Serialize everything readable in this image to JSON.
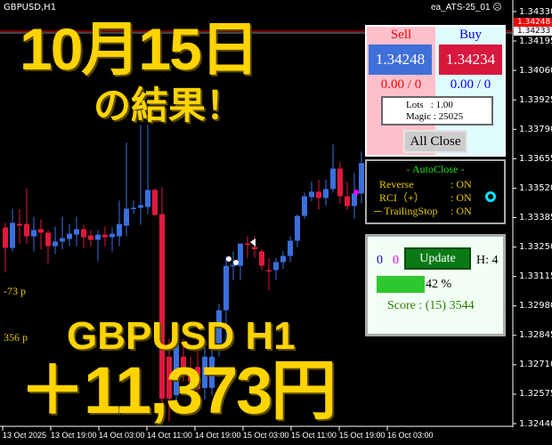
{
  "chart": {
    "symbol": "GBPUSD,H1",
    "ea_name": "ea_ATS-25_01",
    "ea_status_icon": "sad-face-icon",
    "bid_label": "1.34233",
    "ask_label": "1.34248",
    "price_ticks": [
      "1.34330",
      "1.34195",
      "1.34060",
      "1.33925",
      "1.33790",
      "1.33655",
      "1.33520",
      "1.33385",
      "1.33250",
      "1.33115",
      "1.32980",
      "1.32845",
      "1.32710",
      "1.32575",
      "1.32440"
    ],
    "time_ticks": [
      "13 Oct 2025",
      "13 Oct 19:00",
      "14 Oct 03:00",
      "14 Oct 11:00",
      "14 Oct 19:00",
      "15 Oct 03:00",
      "15 Oct 11:00",
      "15 Oct 19:00",
      "16 Oct 03:00"
    ],
    "colors": {
      "bull": "#3a6fe0",
      "bear": "#e0193c"
    },
    "candles_ohlc": [
      [
        1.3334,
        1.33361,
        1.33136,
        1.33246
      ],
      [
        1.33246,
        1.33426,
        1.3323,
        1.33361
      ],
      [
        1.33356,
        1.33422,
        1.33266,
        1.33348
      ],
      [
        1.33356,
        1.3352,
        1.33266,
        1.33299
      ],
      [
        1.33299,
        1.33389,
        1.3323,
        1.33328
      ],
      [
        1.33332,
        1.33377,
        1.33238,
        1.33316
      ],
      [
        1.33316,
        1.33328,
        1.33176,
        1.33254
      ],
      [
        1.33254,
        1.33344,
        1.33217,
        1.33275
      ],
      [
        1.33275,
        1.33389,
        1.33238,
        1.33291
      ],
      [
        1.33287,
        1.33356,
        1.33254,
        1.33311
      ],
      [
        1.33307,
        1.33389,
        1.33254,
        1.33332
      ],
      [
        1.33332,
        1.33352,
        1.33246,
        1.33295
      ],
      [
        1.33303,
        1.33328,
        1.33254,
        1.33283
      ],
      [
        1.33283,
        1.33328,
        1.33185,
        1.33307
      ],
      [
        1.33307,
        1.33344,
        1.33254,
        1.33295
      ],
      [
        1.33295,
        1.3334,
        1.3323,
        1.33311
      ],
      [
        1.33299,
        1.33463,
        1.33254,
        1.33356
      ],
      [
        1.33348,
        1.33729,
        1.33299,
        1.33426
      ],
      [
        1.33426,
        1.33463,
        1.33401,
        1.3343
      ],
      [
        1.3343,
        1.3381,
        1.33352,
        1.33442
      ],
      [
        1.33434,
        1.3381,
        1.33401,
        1.33512
      ],
      [
        1.33512,
        1.3352,
        1.33389,
        1.33397
      ],
      [
        1.33401,
        1.33524,
        1.32522,
        1.32555
      ],
      [
        1.32747,
        1.32829,
        1.3245,
        1.32555
      ],
      [
        1.32571,
        1.32829,
        1.325,
        1.32829
      ],
      [
        1.32747,
        1.32829,
        1.32633,
        1.327
      ],
      [
        1.32665,
        1.32747,
        1.3257,
        1.32633
      ],
      [
        1.327,
        1.3278,
        1.3255,
        1.326
      ],
      [
        1.32604,
        1.328,
        1.3255,
        1.32747
      ],
      [
        1.32604,
        1.3283,
        1.3257,
        1.32747
      ],
      [
        1.32808,
        1.3299,
        1.32747,
        1.3296
      ],
      [
        1.3296,
        1.33209,
        1.32808,
        1.33164
      ],
      [
        1.33164,
        1.3323,
        1.331,
        1.33168
      ],
      [
        1.33164,
        1.3325,
        1.331,
        1.33266
      ],
      [
        1.33266,
        1.333,
        1.332,
        1.3326
      ],
      [
        1.3325,
        1.333,
        1.332,
        1.3324
      ],
      [
        1.3323,
        1.3324,
        1.33144,
        1.33164
      ],
      [
        1.33144,
        1.332,
        1.3305,
        1.3314
      ],
      [
        1.33144,
        1.332,
        1.331,
        1.33181
      ],
      [
        1.33181,
        1.3323,
        1.3315,
        1.33209
      ],
      [
        1.33209,
        1.333,
        1.3318,
        1.33279
      ],
      [
        1.33279,
        1.334,
        1.3325,
        1.33393
      ],
      [
        1.33393,
        1.335,
        1.3338,
        1.33483
      ],
      [
        1.33479,
        1.3355,
        1.3346,
        1.33504
      ],
      [
        1.33504,
        1.3356,
        1.3342,
        1.33475
      ],
      [
        1.33475,
        1.3356,
        1.3344,
        1.33516
      ],
      [
        1.33516,
        1.3372,
        1.335,
        1.3361
      ],
      [
        1.3361,
        1.3364,
        1.3345,
        1.33483
      ],
      [
        1.33483,
        1.3355,
        1.3342,
        1.33438
      ],
      [
        1.33438,
        1.3359,
        1.3338,
        1.33496
      ],
      [
        1.33496,
        1.33688,
        1.3345,
        1.33635
      ]
    ]
  },
  "overlay": {
    "date_title": "10月15日",
    "result_text": "の結果！",
    "pair_tf": "GBPUSD H1",
    "profit": "＋11,373円",
    "pips_1": "-73 p",
    "pips_2": "356 p"
  },
  "trade_panel": {
    "sell_label": "Sell",
    "buy_label": "Buy",
    "sell_price": "1.34248",
    "buy_price": "1.34234",
    "sell_pos": "0.00 / 0",
    "buy_pos": "0.00 / 0",
    "lots": "Lots   : 1.00",
    "magic": "Magic : 25025",
    "all_close": "All Close"
  },
  "autoclose_panel": {
    "title": "- AutoClose -",
    "rows": [
      {
        "label": "Reverse",
        "value": ": ON"
      },
      {
        "label": "RCI（+）",
        "value": ": ON"
      },
      {
        "label": "─ TrailingStop",
        "value": ": ON"
      }
    ],
    "indicator_color": "#00e5ff"
  },
  "score_panel": {
    "count_blue": "0",
    "count_magenta": "0",
    "update": "Update",
    "h": "H: 4",
    "progress_percent": 42,
    "progress_label": "42 %",
    "score": "Score : (15) 3544"
  }
}
